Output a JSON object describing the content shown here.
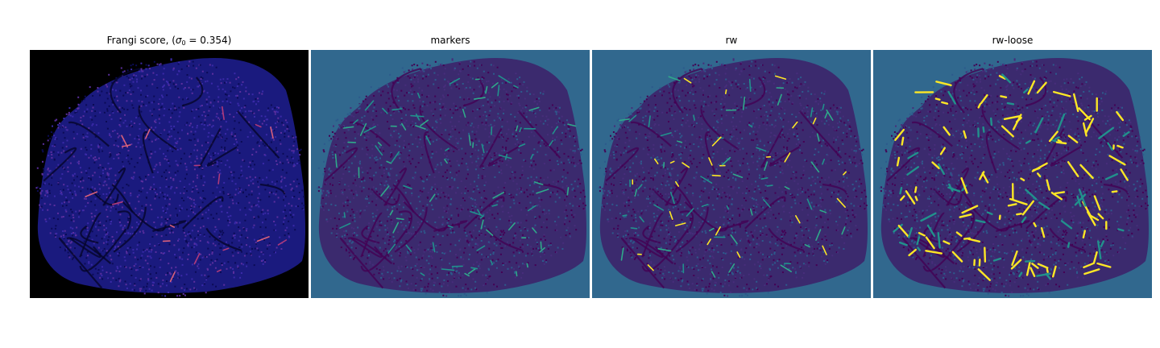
{
  "figure": {
    "panels": [
      {
        "id": "frangi",
        "title_prefix": "Frangi score, (",
        "title_sigma": "σ",
        "title_sub": "0",
        "title_suffix": " = 0.354)",
        "background": "#000000",
        "blob_fill": "#1a1a7e",
        "speckle_colors": [
          "#0b0b55",
          "#3a2aa8",
          "#5b2f9e"
        ],
        "highlight_colors": [
          "#b03a7a",
          "#d8607a"
        ],
        "vessel_color": "#05052a"
      },
      {
        "id": "markers",
        "title": "markers",
        "background": "#31688e",
        "blob_fill": "#3b2a6e",
        "speckle_colors": [
          "#440154",
          "#472d7b",
          "#2d5a8c"
        ],
        "highlight_colors": [
          "#21918c",
          "#2fa98a"
        ],
        "vessel_color": "#440154"
      },
      {
        "id": "rw",
        "title": "rw",
        "background": "#31688e",
        "blob_fill": "#3b2a6e",
        "speckle_colors": [
          "#440154",
          "#472d7b",
          "#2d5a8c"
        ],
        "highlight_colors": [
          "#21918c",
          "#2fa98a",
          "#fde725"
        ],
        "vessel_color": "#440154"
      },
      {
        "id": "rw-loose",
        "title": "rw-loose",
        "background": "#31688e",
        "blob_fill": "#3b2a6e",
        "speckle_colors": [
          "#440154",
          "#472d7b",
          "#2d5a8c"
        ],
        "highlight_colors": [
          "#21918c",
          "#fde725",
          "#fde725"
        ],
        "vessel_color": "#440154"
      }
    ]
  }
}
